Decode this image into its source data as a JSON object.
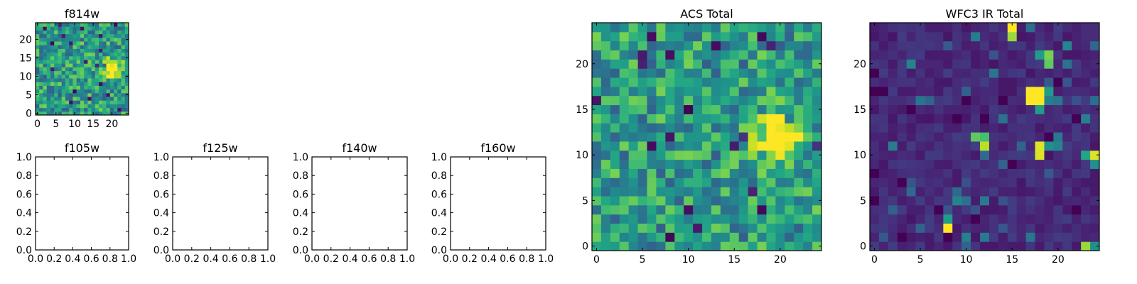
{
  "chart_data": [
    {
      "id": "f814w",
      "type": "heatmap",
      "title": "f814w",
      "xlim": [
        -0.5,
        24.5
      ],
      "ylim": [
        -0.5,
        24.5
      ],
      "xticks": [
        0,
        5,
        10,
        15,
        20
      ],
      "yticks": [
        0,
        5,
        10,
        15,
        20
      ],
      "colormap": "viridis",
      "grid_size": [
        25,
        25
      ],
      "bright_spot_center": [
        20,
        12
      ],
      "baseline": 0.55
    },
    {
      "id": "f105w",
      "type": "empty",
      "title": "f105w",
      "xlim": [
        0,
        1
      ],
      "ylim": [
        0,
        1
      ],
      "xticks": [
        "0.0",
        "0.2",
        "0.4",
        "0.6",
        "0.8",
        "1.0"
      ],
      "yticks": [
        "0.0",
        "0.2",
        "0.4",
        "0.6",
        "0.8",
        "1.0"
      ]
    },
    {
      "id": "f125w",
      "type": "empty",
      "title": "f125w",
      "xlim": [
        0,
        1
      ],
      "ylim": [
        0,
        1
      ],
      "xticks": [
        "0.0",
        "0.2",
        "0.4",
        "0.6",
        "0.8",
        "1.0"
      ],
      "yticks": [
        "0.0",
        "0.2",
        "0.4",
        "0.6",
        "0.8",
        "1.0"
      ]
    },
    {
      "id": "f140w",
      "type": "empty",
      "title": "f140w",
      "xlim": [
        0,
        1
      ],
      "ylim": [
        0,
        1
      ],
      "xticks": [
        "0.0",
        "0.2",
        "0.4",
        "0.6",
        "0.8",
        "1.0"
      ],
      "yticks": [
        "0.0",
        "0.2",
        "0.4",
        "0.6",
        "0.8",
        "1.0"
      ]
    },
    {
      "id": "f160w",
      "type": "empty",
      "title": "f160w",
      "xlim": [
        0,
        1
      ],
      "ylim": [
        0,
        1
      ],
      "xticks": [
        "0.0",
        "0.2",
        "0.4",
        "0.6",
        "0.8",
        "1.0"
      ],
      "yticks": [
        "0.0",
        "0.2",
        "0.4",
        "0.6",
        "0.8",
        "1.0"
      ]
    },
    {
      "id": "acs_total",
      "type": "heatmap",
      "title": "ACS Total",
      "xlim": [
        -0.5,
        24.5
      ],
      "ylim": [
        -0.5,
        24.5
      ],
      "xticks": [
        0,
        5,
        10,
        15,
        20
      ],
      "yticks": [
        0,
        5,
        10,
        15,
        20
      ],
      "colormap": "viridis",
      "grid_size": [
        25,
        25
      ],
      "bright_spot_center": [
        20,
        12
      ],
      "baseline": 0.55
    },
    {
      "id": "wfc3_ir_total",
      "type": "heatmap",
      "title": "WFC3 IR Total",
      "xlim": [
        -0.5,
        24.5
      ],
      "ylim": [
        -0.5,
        24.5
      ],
      "xticks": [
        0,
        5,
        10,
        15,
        20
      ],
      "yticks": [
        0,
        5,
        10,
        15,
        20
      ],
      "colormap": "viridis",
      "grid_size": [
        25,
        25
      ],
      "baseline": 0.06,
      "hot_pixels": [
        {
          "x": 15,
          "y": 24,
          "v": 1.0
        },
        {
          "x": 15,
          "y": 23,
          "v": 0.85
        },
        {
          "x": 18,
          "y": 21,
          "v": 0.55
        },
        {
          "x": 19,
          "y": 21,
          "v": 0.8
        },
        {
          "x": 19,
          "y": 20,
          "v": 0.75
        },
        {
          "x": 17,
          "y": 17,
          "v": 1.0
        },
        {
          "x": 18,
          "y": 17,
          "v": 1.0
        },
        {
          "x": 17,
          "y": 16,
          "v": 1.0
        },
        {
          "x": 18,
          "y": 16,
          "v": 1.0
        },
        {
          "x": 18,
          "y": 15,
          "v": 0.55
        },
        {
          "x": 19,
          "y": 17,
          "v": 0.55
        },
        {
          "x": 11,
          "y": 12,
          "v": 0.75
        },
        {
          "x": 12,
          "y": 12,
          "v": 0.7
        },
        {
          "x": 12,
          "y": 11,
          "v": 0.9
        },
        {
          "x": 18,
          "y": 11,
          "v": 0.95
        },
        {
          "x": 18,
          "y": 10,
          "v": 0.95
        },
        {
          "x": 19,
          "y": 11,
          "v": 0.5
        },
        {
          "x": 20,
          "y": 11,
          "v": 0.45
        },
        {
          "x": 20,
          "y": 12,
          "v": 0.4
        },
        {
          "x": 24,
          "y": 10,
          "v": 0.95
        },
        {
          "x": 23,
          "y": 10,
          "v": 0.6
        },
        {
          "x": 24,
          "y": 9,
          "v": 0.5
        },
        {
          "x": 8,
          "y": 3,
          "v": 0.55
        },
        {
          "x": 8,
          "y": 2,
          "v": 1.0
        },
        {
          "x": 23,
          "y": 0,
          "v": 0.85
        },
        {
          "x": 24,
          "y": 0,
          "v": 0.5
        }
      ]
    }
  ]
}
